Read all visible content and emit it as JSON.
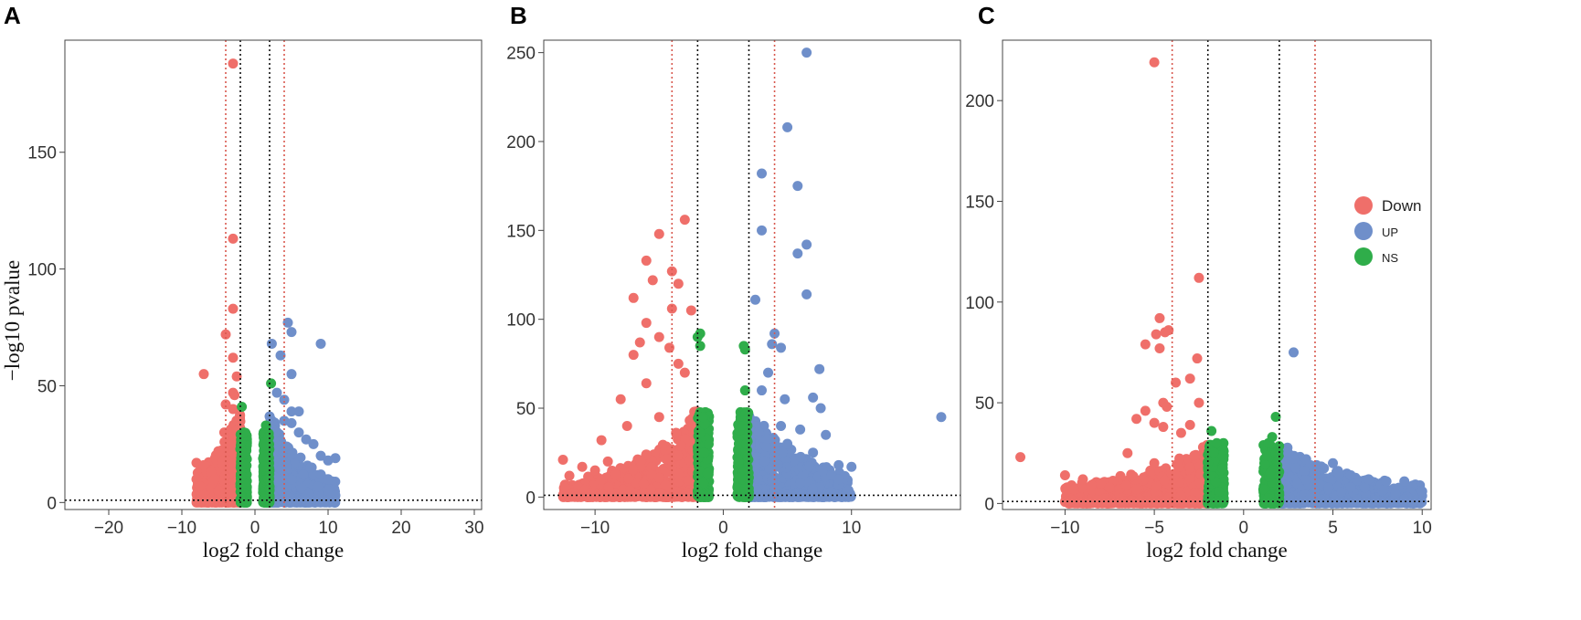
{
  "figure": {
    "colors": {
      "Down": "#ef6f6a",
      "UP": "#6f8fca",
      "NS": "#2fad4a",
      "threshold_inner": "#111111",
      "threshold_outer": "#d8584e"
    },
    "legend": {
      "title": "",
      "entries": [
        "Down",
        "UP",
        "NS"
      ]
    }
  },
  "chart_data": [
    {
      "panel": "A",
      "type": "scatter",
      "title": "",
      "xlabel": "log2 fold change",
      "ylabel": "−log10 pvalue",
      "xlim": [
        -26,
        31
      ],
      "ylim": [
        -3,
        198
      ],
      "xticks": [
        -20,
        -10,
        0,
        10,
        20,
        30
      ],
      "xtick_labels": [
        "−20",
        "−10",
        "0",
        "10",
        "20",
        "30"
      ],
      "yticks": [
        0,
        50,
        100,
        150
      ],
      "ytick_labels": [
        "0",
        "50",
        "100",
        "150"
      ],
      "thresholds": {
        "x_inner": [
          -2,
          2
        ],
        "x_outer": [
          -4,
          4
        ],
        "y": 1
      },
      "density_region": {
        "x": [
          -8,
          11
        ],
        "y_max": 35
      },
      "series": [
        {
          "name": "Down",
          "points": [
            [
              -3,
              188
            ],
            [
              -3,
              113
            ],
            [
              -3,
              83
            ],
            [
              -4,
              72
            ],
            [
              -7,
              55
            ],
            [
              -3,
              62
            ],
            [
              -2.5,
              54
            ],
            [
              -3,
              47
            ],
            [
              -2.8,
              46
            ],
            [
              -4,
              42
            ],
            [
              -3,
              40
            ],
            [
              -4.2,
              30
            ],
            [
              -3.5,
              25
            ],
            [
              -5,
              22
            ],
            [
              -8,
              17
            ],
            [
              -7,
              16
            ],
            [
              -6,
              13
            ],
            [
              -5.5,
              10
            ],
            [
              -8,
              10
            ],
            [
              -7,
              8
            ],
            [
              -6,
              6
            ],
            [
              -5,
              5
            ],
            [
              -4,
              4
            ],
            [
              -7.5,
              7
            ]
          ]
        },
        {
          "name": "UP",
          "points": [
            [
              2.3,
              68
            ],
            [
              3.5,
              63
            ],
            [
              4.5,
              77
            ],
            [
              5,
              73
            ],
            [
              9,
              68
            ],
            [
              5,
              55
            ],
            [
              3,
              47
            ],
            [
              4,
              44
            ],
            [
              5,
              39
            ],
            [
              6,
              39
            ],
            [
              4,
              35
            ],
            [
              5,
              34
            ],
            [
              6,
              30
            ],
            [
              7,
              27
            ],
            [
              8,
              25
            ],
            [
              9,
              20
            ],
            [
              10,
              18
            ],
            [
              11,
              19
            ],
            [
              9,
              12
            ],
            [
              10,
              10
            ],
            [
              10,
              5
            ],
            [
              11,
              3
            ]
          ]
        },
        {
          "name": "NS",
          "points": [
            [
              2.2,
              51
            ],
            [
              -1.8,
              41
            ],
            [
              1.5,
              33
            ],
            [
              -1.5,
              30
            ],
            [
              1.8,
              28
            ]
          ]
        }
      ]
    },
    {
      "panel": "B",
      "type": "scatter",
      "title": "",
      "xlabel": "log2 fold change",
      "ylabel": "",
      "xlim": [
        -14,
        18.5
      ],
      "ylim": [
        -7,
        257
      ],
      "xticks": [
        -10,
        0,
        10
      ],
      "xtick_labels": [
        "−10",
        "0",
        "10"
      ],
      "yticks": [
        0,
        50,
        100,
        150,
        200,
        250
      ],
      "ytick_labels": [
        "0",
        "50",
        "100",
        "150",
        "200",
        "250"
      ],
      "thresholds": {
        "x_inner": [
          -2,
          2
        ],
        "x_outer": [
          -4,
          4
        ],
        "y": 1
      },
      "density_region": {
        "x": [
          -12.5,
          10
        ],
        "y_max": 45
      },
      "series": [
        {
          "name": "Down",
          "points": [
            [
              -3,
              156
            ],
            [
              -5,
              148
            ],
            [
              -6,
              133
            ],
            [
              -4,
              127
            ],
            [
              -5.5,
              122
            ],
            [
              -3.5,
              120
            ],
            [
              -7,
              112
            ],
            [
              -4,
              106
            ],
            [
              -6,
              98
            ],
            [
              -2.5,
              105
            ],
            [
              -5,
              90
            ],
            [
              -4.2,
              84
            ],
            [
              -6.5,
              87
            ],
            [
              -7,
              80
            ],
            [
              -3.5,
              75
            ],
            [
              -8,
              55
            ],
            [
              -9.5,
              32
            ],
            [
              -12.5,
              21
            ],
            [
              -11,
              17
            ],
            [
              -10,
              15
            ],
            [
              -12,
              12
            ],
            [
              -9,
              20
            ],
            [
              -6,
              64
            ],
            [
              -3,
              70
            ],
            [
              -7.5,
              40
            ],
            [
              -5,
              45
            ]
          ]
        },
        {
          "name": "UP",
          "points": [
            [
              6.5,
              250
            ],
            [
              5,
              208
            ],
            [
              3,
              182
            ],
            [
              5.8,
              175
            ],
            [
              3,
              150
            ],
            [
              6.5,
              142
            ],
            [
              5.8,
              137
            ],
            [
              2.5,
              111
            ],
            [
              6.5,
              114
            ],
            [
              4,
              92
            ],
            [
              3.8,
              86
            ],
            [
              4.5,
              84
            ],
            [
              7.5,
              72
            ],
            [
              3.5,
              70
            ],
            [
              3,
              60
            ],
            [
              7,
              56
            ],
            [
              4.8,
              55
            ],
            [
              7.6,
              50
            ],
            [
              6,
              38
            ],
            [
              4.5,
              40
            ],
            [
              8,
              35
            ],
            [
              5,
              30
            ],
            [
              7,
              25
            ],
            [
              9,
              18
            ],
            [
              10,
              17
            ],
            [
              17,
              45
            ],
            [
              9,
              10
            ],
            [
              6,
              8
            ],
            [
              4,
              5
            ]
          ]
        },
        {
          "name": "NS",
          "points": [
            [
              -1.8,
              92
            ],
            [
              -2,
              90
            ],
            [
              -1.8,
              85
            ],
            [
              1.6,
              85
            ],
            [
              1.7,
              83
            ],
            [
              1.7,
              60
            ],
            [
              -1.6,
              45
            ],
            [
              1.5,
              40
            ],
            [
              -1.8,
              36
            ],
            [
              1.8,
              30
            ],
            [
              -1.5,
              25
            ]
          ]
        }
      ]
    },
    {
      "panel": "C",
      "type": "scatter",
      "title": "",
      "xlabel": "log2 fold change",
      "ylabel": "",
      "xlim": [
        -13.5,
        10.5
      ],
      "ylim": [
        -3,
        230
      ],
      "xticks": [
        -10,
        -5,
        0,
        5,
        10
      ],
      "xtick_labels": [
        "−10",
        "−5",
        "0",
        "5",
        "10"
      ],
      "yticks": [
        0,
        50,
        100,
        150,
        200
      ],
      "ytick_labels": [
        "0",
        "50",
        "100",
        "150",
        "200"
      ],
      "thresholds": {
        "x_inner": [
          -2,
          2
        ],
        "x_outer": [
          -4,
          4
        ],
        "y": 1
      },
      "density_region": {
        "x": [
          -10,
          10
        ],
        "y_max": 25
      },
      "legend_position": "right",
      "series": [
        {
          "name": "Down",
          "points": [
            [
              -5,
              219
            ],
            [
              -2.5,
              112
            ],
            [
              -4.7,
              92
            ],
            [
              -4.4,
              85
            ],
            [
              -4.9,
              84
            ],
            [
              -4.2,
              86
            ],
            [
              -5.5,
              79
            ],
            [
              -4.7,
              77
            ],
            [
              -2.6,
              72
            ],
            [
              -3,
              62
            ],
            [
              -3.8,
              60
            ],
            [
              -4.5,
              50
            ],
            [
              -2.5,
              50
            ],
            [
              -4.3,
              48
            ],
            [
              -5.5,
              46
            ],
            [
              -6,
              42
            ],
            [
              -5,
              40
            ],
            [
              -4.5,
              38
            ],
            [
              -3.5,
              35
            ],
            [
              -3,
              39
            ],
            [
              -12.5,
              23
            ],
            [
              -10,
              14
            ],
            [
              -9,
              12
            ],
            [
              -8,
              10
            ],
            [
              -7.5,
              8
            ],
            [
              -6,
              7
            ],
            [
              -5,
              20
            ],
            [
              -6.5,
              25
            ]
          ]
        },
        {
          "name": "UP",
          "points": [
            [
              2.8,
              75
            ],
            [
              2.5,
              25
            ],
            [
              3.5,
              22
            ],
            [
              5,
              20
            ],
            [
              4,
              15
            ],
            [
              6,
              14
            ],
            [
              7,
              12
            ],
            [
              8,
              11
            ],
            [
              9,
              11
            ],
            [
              10,
              6
            ],
            [
              9,
              2
            ],
            [
              6,
              8
            ],
            [
              3,
              10
            ],
            [
              8.5,
              5
            ]
          ]
        },
        {
          "name": "NS",
          "points": [
            [
              1.8,
              43
            ],
            [
              -1.8,
              36
            ],
            [
              1.6,
              33
            ],
            [
              -1.5,
              30
            ],
            [
              1.8,
              25
            ],
            [
              -2,
              20
            ],
            [
              1.5,
              15
            ]
          ]
        }
      ]
    }
  ]
}
